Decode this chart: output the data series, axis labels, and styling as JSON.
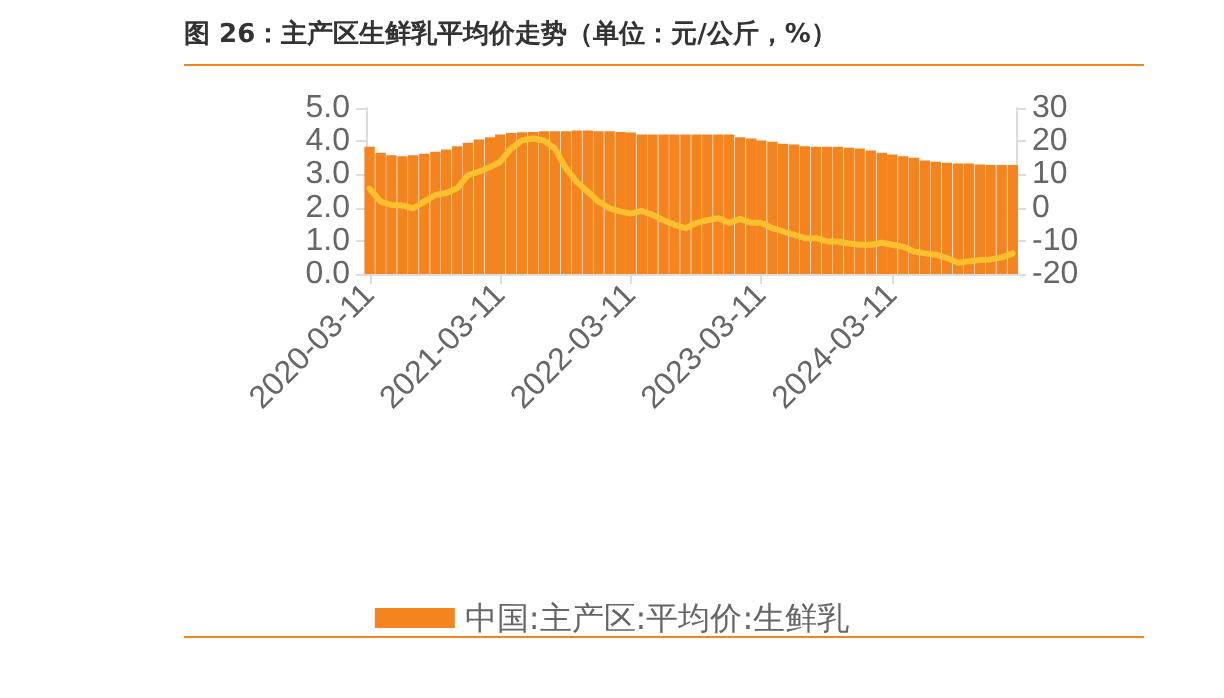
{
  "chart_data": {
    "type": "bar",
    "title": "图 26：主产区生鲜乳平均价走势（单位：元/公斤，%）",
    "x": [
      "2020-03-11",
      "2020-04-11",
      "2020-05-11",
      "2020-06-11",
      "2020-07-11",
      "2020-08-11",
      "2020-09-11",
      "2020-10-11",
      "2020-11-11",
      "2020-12-11",
      "2021-01-11",
      "2021-02-11",
      "2021-03-11",
      "2021-04-11",
      "2021-05-11",
      "2021-06-11",
      "2021-07-11",
      "2021-08-11",
      "2021-09-11",
      "2021-10-11",
      "2021-11-11",
      "2021-12-11",
      "2022-01-11",
      "2022-02-11",
      "2022-03-11",
      "2022-04-11",
      "2022-05-11",
      "2022-06-11",
      "2022-07-11",
      "2022-08-11",
      "2022-09-11",
      "2022-10-11",
      "2022-11-11",
      "2022-12-11",
      "2023-01-11",
      "2023-02-11",
      "2023-03-11",
      "2023-04-11",
      "2023-05-11",
      "2023-06-11",
      "2023-07-11",
      "2023-08-11",
      "2023-09-11",
      "2023-10-11",
      "2023-11-11",
      "2023-12-11",
      "2024-01-11",
      "2024-02-11",
      "2024-03-11",
      "2024-04-11",
      "2024-05-11",
      "2024-06-11",
      "2024-07-11",
      "2024-08-11",
      "2024-09-11",
      "2024-10-11",
      "2024-11-11",
      "2024-12-11",
      "2025-01-11",
      "2025-02-11"
    ],
    "series": [
      {
        "name": "中国:主产区:平均价:生鲜乳",
        "color": "#f5841f",
        "values": [
          3.83,
          3.65,
          3.58,
          3.55,
          3.58,
          3.62,
          3.68,
          3.75,
          3.85,
          3.95,
          4.05,
          4.12,
          4.2,
          4.25,
          4.27,
          4.28,
          4.3,
          4.3,
          4.3,
          4.32,
          4.32,
          4.3,
          4.3,
          4.28,
          4.26,
          4.2,
          4.2,
          4.2,
          4.2,
          4.2,
          4.2,
          4.2,
          4.2,
          4.2,
          4.12,
          4.08,
          4.02,
          3.98,
          3.92,
          3.9,
          3.85,
          3.83,
          3.83,
          3.83,
          3.8,
          3.78,
          3.72,
          3.65,
          3.6,
          3.55,
          3.5,
          3.42,
          3.38,
          3.35,
          3.33,
          3.33,
          3.3,
          3.28,
          3.28,
          3.28
        ]
      },
      {
        "type": "line",
        "axis": "y2",
        "color": "#fbc02d",
        "values": [
          5.7,
          1.8,
          0.8,
          0.6,
          -0.2,
          1.8,
          3.8,
          4.4,
          5.8,
          9.8,
          10.8,
          12.2,
          13.8,
          17.8,
          20.2,
          20.8,
          20.2,
          17.8,
          11.8,
          7.8,
          4.8,
          1.8,
          -0.2,
          -1.2,
          -1.8,
          -1.0,
          -2.2,
          -3.8,
          -5.2,
          -6.2,
          -4.6,
          -3.8,
          -3.2,
          -4.6,
          -3.4,
          -4.6,
          -4.6,
          -6.2,
          -7.2,
          -8.2,
          -9.2,
          -9.2,
          -10.2,
          -10.2,
          -10.8,
          -11.2,
          -11.2,
          -10.6,
          -11.2,
          -11.8,
          -13.2,
          -13.8,
          -14.2,
          -15.2,
          -16.6,
          -16.2,
          -15.8,
          -15.6,
          -15.0,
          -13.8
        ]
      }
    ],
    "xlim": [
      "2020-03-01",
      "2025-02-20"
    ],
    "xticks": [
      "2020-03-11",
      "2021-03-11",
      "2022-03-11",
      "2023-03-11",
      "2024-03-11"
    ],
    "ylim": [
      0,
      5
    ],
    "yticks": [
      {
        "value": 0,
        "label": "0.0"
      },
      {
        "value": 1,
        "label": "1.0"
      },
      {
        "value": 2,
        "label": "2.0"
      },
      {
        "value": 3,
        "label": "3.0"
      },
      {
        "value": 4,
        "label": "4.0"
      },
      {
        "value": 5,
        "label": "5.0"
      }
    ],
    "y2lim": [
      -20,
      30
    ],
    "y2ticks": [
      -20,
      -10,
      0,
      10,
      20,
      30
    ],
    "grid": false,
    "legend": "bottom",
    "marker": "none",
    "line_style": "solid"
  }
}
